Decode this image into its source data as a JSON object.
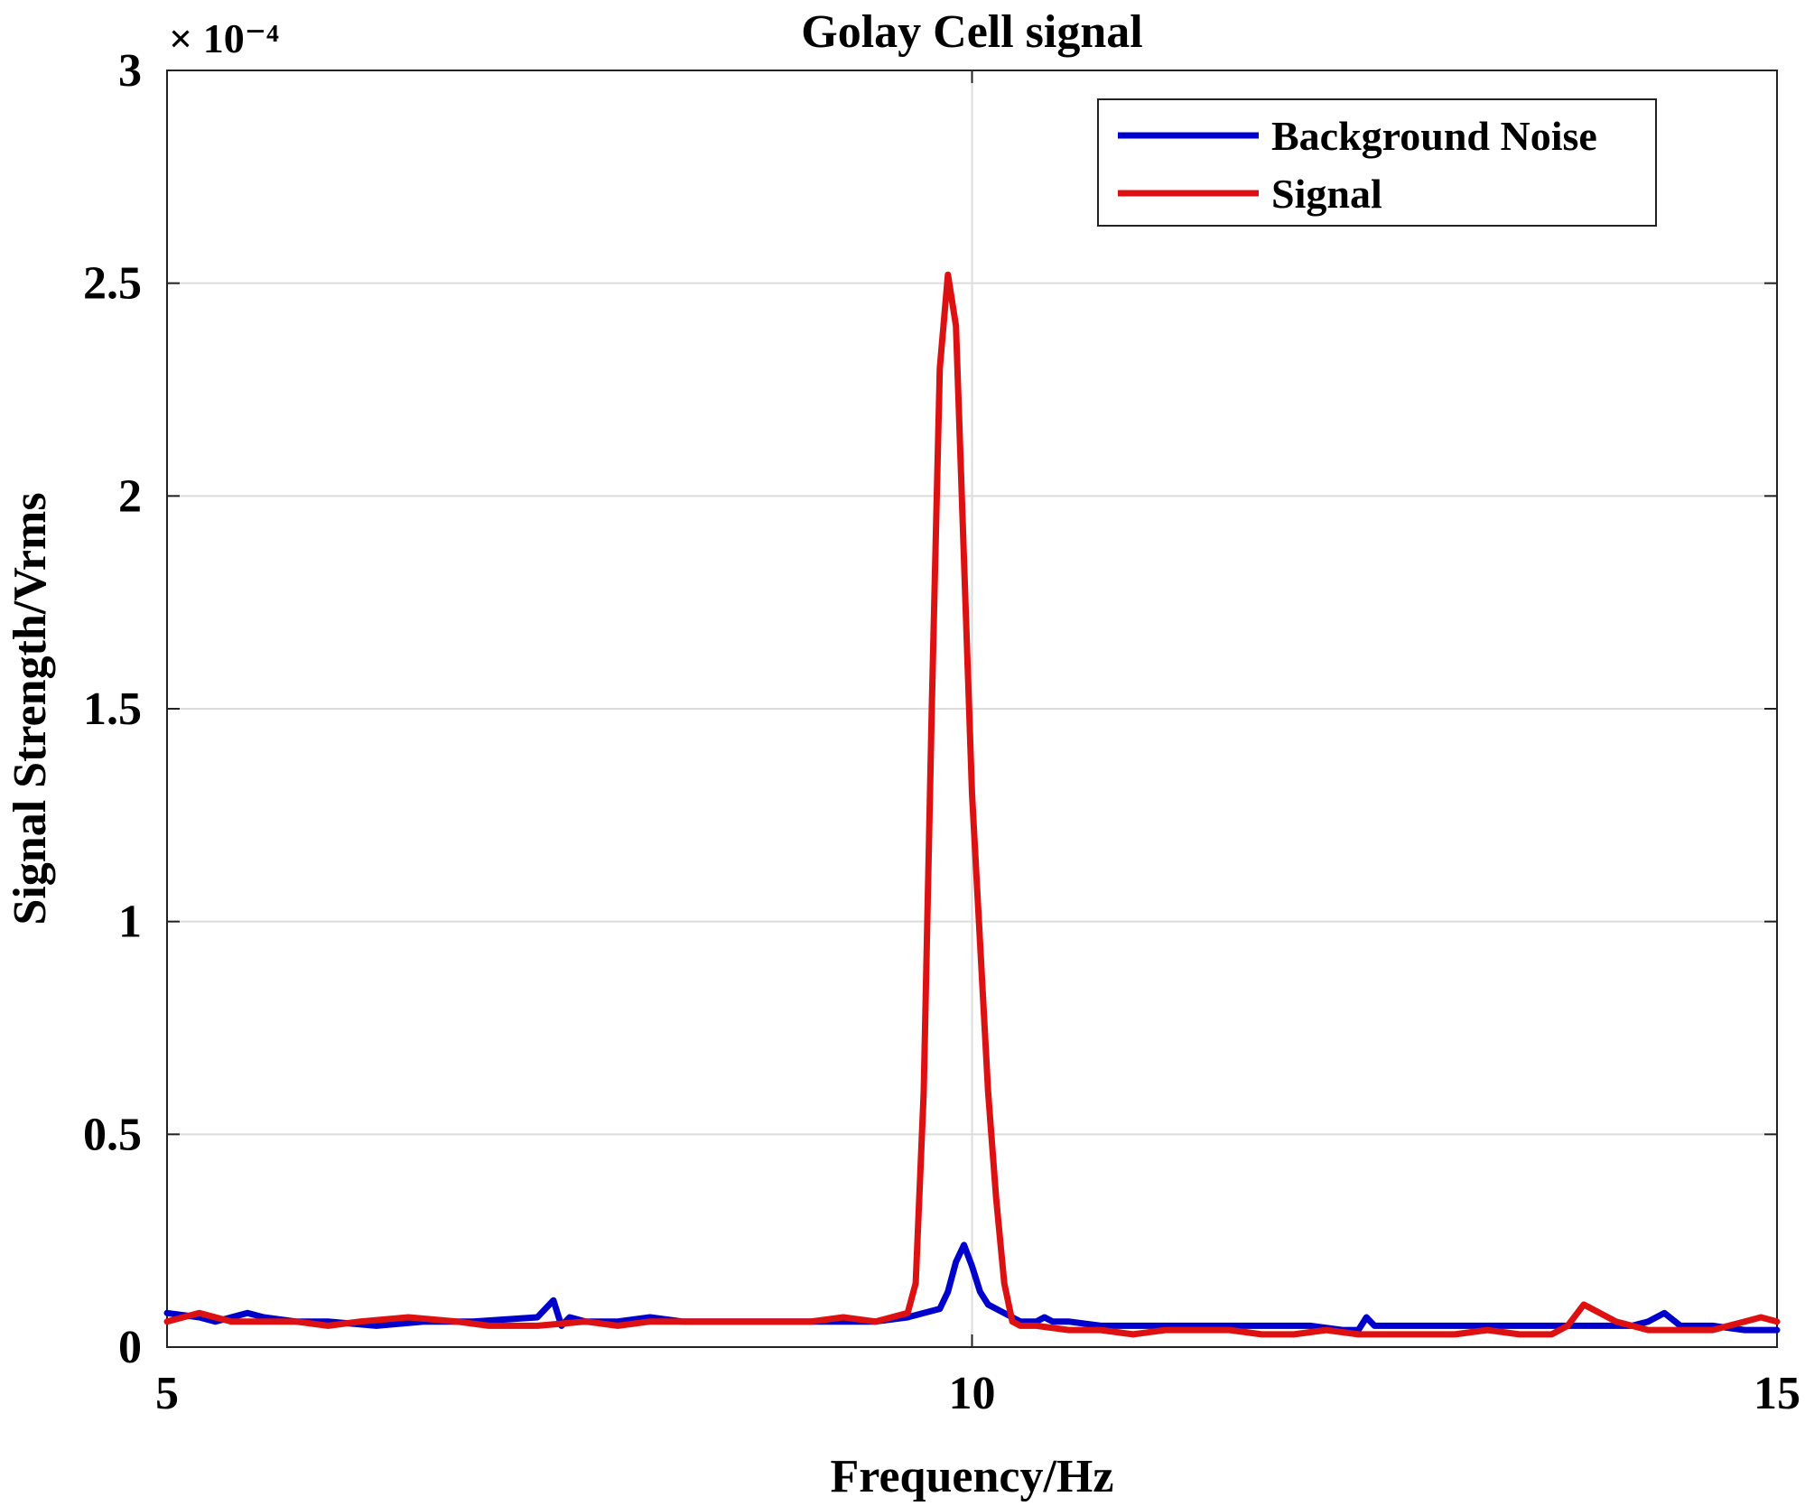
{
  "chart_data": {
    "type": "line",
    "title": "Golay Cell signal",
    "xlabel": "Frequency/Hz",
    "ylabel": "Signal Strength/Vrms",
    "exponent_label": "× 10⁻⁴",
    "xlim": [
      5,
      15
    ],
    "ylim": [
      0,
      3
    ],
    "xticks": [
      "5",
      "10",
      "15"
    ],
    "yticks": [
      "0",
      "0.5",
      "1",
      "1.5",
      "2",
      "2.5",
      "3"
    ],
    "grid": true,
    "legend_position": "top-right",
    "series": [
      {
        "name": "Background Noise",
        "color": "#0000cc",
        "x": [
          5.0,
          5.2,
          5.3,
          5.5,
          5.6,
          5.8,
          6.0,
          6.3,
          6.6,
          6.9,
          7.3,
          7.4,
          7.45,
          7.5,
          7.6,
          7.8,
          8.0,
          8.2,
          8.5,
          8.8,
          9.0,
          9.2,
          9.4,
          9.6,
          9.7,
          9.8,
          9.85,
          9.9,
          9.95,
          10.0,
          10.05,
          10.1,
          10.2,
          10.3,
          10.4,
          10.45,
          10.5,
          10.6,
          10.8,
          11.0,
          11.3,
          11.6,
          11.9,
          12.1,
          12.3,
          12.4,
          12.45,
          12.5,
          12.6,
          12.8,
          13.0,
          13.3,
          13.6,
          13.9,
          14.1,
          14.2,
          14.3,
          14.4,
          14.6,
          14.8,
          15.0
        ],
        "values": [
          0.08,
          0.07,
          0.06,
          0.08,
          0.07,
          0.06,
          0.06,
          0.05,
          0.06,
          0.06,
          0.07,
          0.11,
          0.05,
          0.07,
          0.06,
          0.06,
          0.07,
          0.06,
          0.06,
          0.06,
          0.06,
          0.06,
          0.06,
          0.07,
          0.08,
          0.09,
          0.13,
          0.2,
          0.24,
          0.19,
          0.13,
          0.1,
          0.08,
          0.06,
          0.06,
          0.07,
          0.06,
          0.06,
          0.05,
          0.05,
          0.05,
          0.05,
          0.05,
          0.05,
          0.04,
          0.04,
          0.07,
          0.05,
          0.05,
          0.05,
          0.05,
          0.05,
          0.05,
          0.05,
          0.05,
          0.06,
          0.08,
          0.05,
          0.05,
          0.04,
          0.04
        ]
      },
      {
        "name": "Signal",
        "color": "#dd1111",
        "x": [
          5.0,
          5.1,
          5.2,
          5.3,
          5.4,
          5.6,
          5.8,
          6.0,
          6.2,
          6.5,
          6.8,
          7.0,
          7.3,
          7.6,
          7.8,
          8.0,
          8.2,
          8.5,
          8.8,
          9.0,
          9.2,
          9.4,
          9.5,
          9.6,
          9.65,
          9.7,
          9.75,
          9.8,
          9.85,
          9.9,
          9.95,
          10.0,
          10.05,
          10.1,
          10.15,
          10.2,
          10.25,
          10.3,
          10.4,
          10.6,
          10.8,
          11.0,
          11.2,
          11.4,
          11.6,
          11.8,
          12.0,
          12.2,
          12.4,
          12.6,
          12.8,
          13.0,
          13.2,
          13.4,
          13.5,
          13.6,
          13.7,
          13.8,
          14.0,
          14.2,
          14.4,
          14.6,
          14.8,
          14.9,
          15.0
        ],
        "values": [
          0.06,
          0.07,
          0.08,
          0.07,
          0.06,
          0.06,
          0.06,
          0.05,
          0.06,
          0.07,
          0.06,
          0.05,
          0.05,
          0.06,
          0.05,
          0.06,
          0.06,
          0.06,
          0.06,
          0.06,
          0.07,
          0.06,
          0.07,
          0.08,
          0.15,
          0.6,
          1.5,
          2.3,
          2.52,
          2.4,
          1.85,
          1.3,
          0.95,
          0.6,
          0.35,
          0.15,
          0.06,
          0.05,
          0.05,
          0.04,
          0.04,
          0.03,
          0.04,
          0.04,
          0.04,
          0.03,
          0.03,
          0.04,
          0.03,
          0.03,
          0.03,
          0.03,
          0.04,
          0.03,
          0.03,
          0.03,
          0.05,
          0.1,
          0.06,
          0.04,
          0.04,
          0.04,
          0.06,
          0.07,
          0.06
        ]
      }
    ]
  }
}
